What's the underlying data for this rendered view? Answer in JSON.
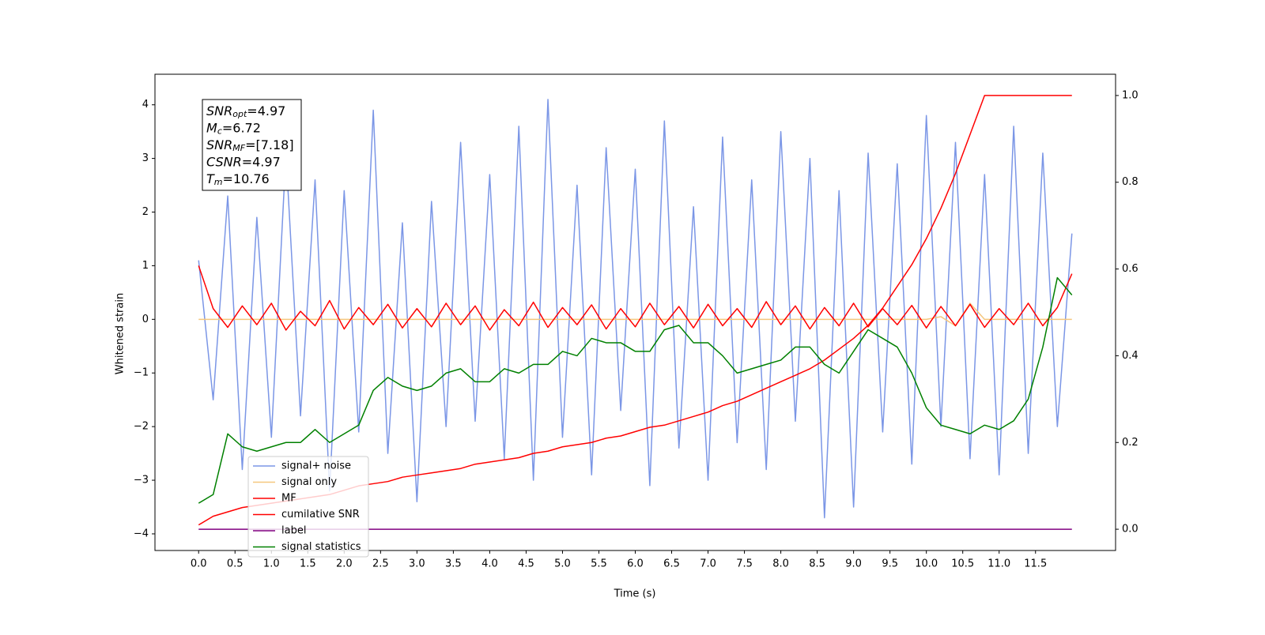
{
  "chart_data": {
    "type": "line",
    "xlabel": "Time (s)",
    "ylabel": "Whitened strain",
    "xlim": [
      -0.6,
      12.6
    ],
    "ylim": [
      -4.31,
      4.57
    ],
    "y2lim": [
      -0.049,
      1.049
    ],
    "xticks": [
      {
        "value": 0,
        "label": "0.0"
      },
      0.5,
      {
        "value": 1,
        "label": "1.0"
      },
      1.5,
      {
        "value": 2,
        "label": "2.0"
      },
      2.5,
      {
        "value": 3,
        "label": "3.0"
      },
      3.5,
      {
        "value": 4,
        "label": "4.0"
      },
      4.5,
      {
        "value": 5,
        "label": "5.0"
      },
      5.5,
      {
        "value": 6,
        "label": "6.0"
      },
      6.5,
      {
        "value": 7,
        "label": "7.0"
      },
      7.5,
      {
        "value": 8,
        "label": "8.0"
      },
      8.5,
      {
        "value": 9,
        "label": "9.0"
      },
      9.5,
      {
        "value": 10,
        "label": "10.0"
      },
      10.5,
      {
        "value": 11,
        "label": "11.0"
      },
      11.5
    ],
    "yticks": [
      {
        "value": -4,
        "label": "−4"
      },
      {
        "value": -3,
        "label": "−3"
      },
      {
        "value": -2,
        "label": "−2"
      },
      {
        "value": -1,
        "label": "−1"
      },
      0,
      1,
      2,
      3,
      4
    ],
    "y2ticks": [
      {
        "value": 0,
        "label": "0.0"
      },
      0.2,
      0.4,
      0.6,
      0.8,
      {
        "value": 1,
        "label": "1.0"
      }
    ],
    "grid": false,
    "legend": "lower left",
    "annotation": [
      {
        "name": "SNR",
        "sub": "opt",
        "text": "=4.97"
      },
      {
        "name": "M",
        "sub": "c",
        "text": "=6.72"
      },
      {
        "name": "SNR",
        "sub": "MF",
        "text": "=[7.18]"
      },
      {
        "name": "CSNR",
        "text": "=4.97"
      },
      {
        "name": "T",
        "sub": "m",
        "text": "=10.76"
      }
    ],
    "x": [
      0,
      0.2,
      0.4,
      0.6,
      0.8,
      1,
      1.2,
      1.4,
      1.6,
      1.8,
      2,
      2.2,
      2.4,
      2.6,
      2.8,
      3,
      3.2,
      3.4,
      3.6,
      3.8,
      4,
      4.2,
      4.4,
      4.6,
      4.8,
      5,
      5.2,
      5.4,
      5.6,
      5.8,
      6,
      6.2,
      6.4,
      6.6,
      6.8,
      7,
      7.2,
      7.4,
      7.6,
      7.8,
      8,
      8.2,
      8.4,
      8.6,
      8.8,
      9,
      9.2,
      9.4,
      9.6,
      9.8,
      10,
      10.2,
      10.4,
      10.6,
      10.8,
      11,
      11.2,
      11.4,
      11.6,
      11.8,
      12
    ],
    "series": [
      {
        "name": "signal+ noise",
        "color": "#7b96e6",
        "values": [
          1.1,
          -1.5,
          2.3,
          -2.8,
          1.9,
          -2.2,
          3.1,
          -1.8,
          2.6,
          -3.2,
          2.4,
          -2.1,
          3.9,
          -2.5,
          1.8,
          -3.4,
          2.2,
          -2.0,
          3.3,
          -1.9,
          2.7,
          -2.6,
          3.6,
          -3.0,
          4.1,
          -2.2,
          2.5,
          -2.9,
          3.2,
          -1.7,
          2.8,
          -3.1,
          3.7,
          -2.4,
          2.1,
          -3.0,
          3.4,
          -2.3,
          2.6,
          -2.8,
          3.5,
          -1.9,
          3.0,
          -3.7,
          2.4,
          -3.5,
          3.1,
          -2.1,
          2.9,
          -2.7,
          3.8,
          -2.0,
          3.3,
          -2.6,
          2.7,
          -2.9,
          3.6,
          -2.5,
          3.1,
          -2.0,
          1.6
        ]
      },
      {
        "name": "signal only",
        "color": "#f5c77e",
        "values": [
          0,
          0,
          0,
          0,
          0,
          0,
          0,
          0,
          0,
          0,
          0,
          0,
          0,
          0,
          0,
          0,
          0,
          0,
          0,
          0,
          0,
          0,
          0,
          0,
          0,
          0,
          0,
          0,
          0,
          0,
          0,
          0,
          0,
          0,
          0,
          0,
          0,
          0,
          0,
          0,
          0,
          0,
          0,
          0,
          0,
          0,
          0,
          0,
          0,
          0,
          0,
          0.05,
          -0.12,
          0.3,
          0,
          0,
          0,
          0,
          0,
          0,
          0
        ]
      },
      {
        "name": "MF",
        "color": "#ff0000",
        "values": [
          1.0,
          0.2,
          -0.15,
          0.25,
          -0.1,
          0.3,
          -0.2,
          0.15,
          -0.12,
          0.35,
          -0.18,
          0.22,
          -0.1,
          0.28,
          -0.16,
          0.2,
          -0.14,
          0.3,
          -0.1,
          0.25,
          -0.2,
          0.18,
          -0.12,
          0.32,
          -0.15,
          0.22,
          -0.1,
          0.27,
          -0.18,
          0.2,
          -0.14,
          0.3,
          -0.1,
          0.24,
          -0.16,
          0.28,
          -0.12,
          0.2,
          -0.15,
          0.33,
          -0.1,
          0.25,
          -0.18,
          0.22,
          -0.12,
          0.3,
          -0.14,
          0.2,
          -0.1,
          0.26,
          -0.16,
          0.24,
          -0.12,
          0.28,
          -0.15,
          0.2,
          -0.1,
          0.3,
          -0.12,
          0.22,
          0.85
        ]
      },
      {
        "name": "cumilative SNR",
        "color": "#ff0000",
        "axis": "y2",
        "values": [
          0.01,
          0.03,
          0.04,
          0.05,
          0.055,
          0.06,
          0.065,
          0.07,
          0.075,
          0.08,
          0.09,
          0.1,
          0.105,
          0.11,
          0.12,
          0.125,
          0.13,
          0.135,
          0.14,
          0.15,
          0.155,
          0.16,
          0.165,
          0.175,
          0.18,
          0.19,
          0.195,
          0.2,
          0.21,
          0.215,
          0.225,
          0.235,
          0.24,
          0.25,
          0.26,
          0.27,
          0.285,
          0.295,
          0.31,
          0.325,
          0.34,
          0.355,
          0.37,
          0.39,
          0.415,
          0.44,
          0.47,
          0.51,
          0.56,
          0.61,
          0.67,
          0.74,
          0.82,
          0.91,
          1.0,
          1.0,
          1.0,
          1.0,
          1.0,
          1.0,
          1.0
        ]
      },
      {
        "name": "label",
        "color": "#800080",
        "axis": "y2",
        "values": [
          0,
          0,
          0,
          0,
          0,
          0,
          0,
          0,
          0,
          0,
          0,
          0,
          0,
          0,
          0,
          0,
          0,
          0,
          0,
          0,
          0,
          0,
          0,
          0,
          0,
          0,
          0,
          0,
          0,
          0,
          0,
          0,
          0,
          0,
          0,
          0,
          0,
          0,
          0,
          0,
          0,
          0,
          0,
          0,
          0,
          0,
          0,
          0,
          0,
          0,
          0,
          0,
          0,
          0,
          0,
          0,
          0,
          0,
          0,
          0,
          0
        ]
      },
      {
        "name": "signal statistics",
        "color": "#008000",
        "axis": "y2",
        "values": [
          0.06,
          0.08,
          0.22,
          0.19,
          0.18,
          0.19,
          0.2,
          0.2,
          0.23,
          0.2,
          0.22,
          0.24,
          0.32,
          0.35,
          0.33,
          0.32,
          0.33,
          0.36,
          0.37,
          0.34,
          0.34,
          0.37,
          0.36,
          0.38,
          0.38,
          0.41,
          0.4,
          0.44,
          0.43,
          0.43,
          0.41,
          0.41,
          0.46,
          0.47,
          0.43,
          0.43,
          0.4,
          0.36,
          0.37,
          0.38,
          0.39,
          0.42,
          0.42,
          0.38,
          0.36,
          0.41,
          0.46,
          0.44,
          0.42,
          0.36,
          0.28,
          0.24,
          0.23,
          0.22,
          0.24,
          0.23,
          0.25,
          0.3,
          0.42,
          0.58,
          0.54
        ]
      }
    ]
  }
}
